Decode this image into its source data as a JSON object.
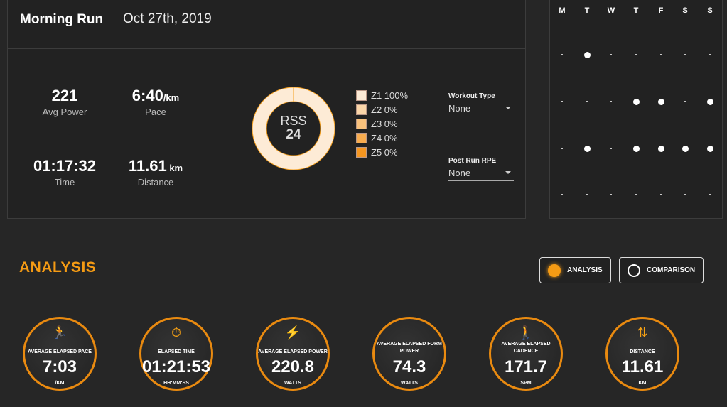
{
  "header": {
    "title": "Morning Run",
    "date": "Oct 27th, 2019"
  },
  "stats": [
    {
      "value": "221",
      "unit": "",
      "label": "Avg Power"
    },
    {
      "value": "6:40",
      "unit": "/km",
      "label": "Pace"
    },
    {
      "value": "01:17:32",
      "unit": "",
      "label": "Time"
    },
    {
      "value": "11.61",
      "unit": " km",
      "label": "Distance"
    }
  ],
  "rss": {
    "label": "RSS",
    "value": "24"
  },
  "zones": [
    {
      "label": "Z1 100%",
      "percent": 100,
      "color": "#fdebd6"
    },
    {
      "label": "Z2 0%",
      "percent": 0,
      "color": "#fbd6a8"
    },
    {
      "label": "Z3 0%",
      "percent": 0,
      "color": "#f9c17c"
    },
    {
      "label": "Z4 0%",
      "percent": 0,
      "color": "#f7ab4e"
    },
    {
      "label": "Z5 0%",
      "percent": 0,
      "color": "#f59620"
    }
  ],
  "selects": [
    {
      "label": "Workout Type",
      "value": "None"
    },
    {
      "label": "Post Run RPE",
      "value": "None"
    }
  ],
  "calendar": {
    "days": [
      "M",
      "T",
      "W",
      "T",
      "F",
      "S",
      "S"
    ],
    "weeks": [
      [
        0,
        1,
        0,
        0,
        0,
        0,
        0
      ],
      [
        0,
        0,
        0,
        1,
        1,
        0,
        1
      ],
      [
        0,
        1,
        0,
        1,
        1,
        1,
        1
      ],
      [
        0,
        0,
        0,
        0,
        0,
        0,
        0
      ]
    ]
  },
  "analysis": {
    "title": "ANALYSIS",
    "toggles": [
      {
        "label": "ANALYSIS",
        "active": true
      },
      {
        "label": "COMPARISON",
        "active": false
      }
    ],
    "accent": "#f59b14",
    "metrics": [
      {
        "icon": "running-icon",
        "label": "AVERAGE ELAPSED PACE",
        "value": "7:03",
        "unit": "/KM"
      },
      {
        "icon": "stopwatch-icon",
        "label": "ELAPSED TIME",
        "value": "01:21:53",
        "unit": "HH:MM:SS"
      },
      {
        "icon": "lightning-icon",
        "label": "AVERAGE ELAPSED POWER",
        "value": "220.8",
        "unit": "WATTS"
      },
      {
        "icon": "",
        "label": "AVERAGE ELAPSED FORM POWER",
        "value": "74.3",
        "unit": "WATTS"
      },
      {
        "icon": "walking-icon",
        "label": "AVERAGE ELAPSED CADENCE",
        "value": "171.7",
        "unit": "SPM"
      },
      {
        "icon": "route-icon",
        "label": "DISTANCE",
        "value": "11.61",
        "unit": "KM"
      }
    ]
  }
}
